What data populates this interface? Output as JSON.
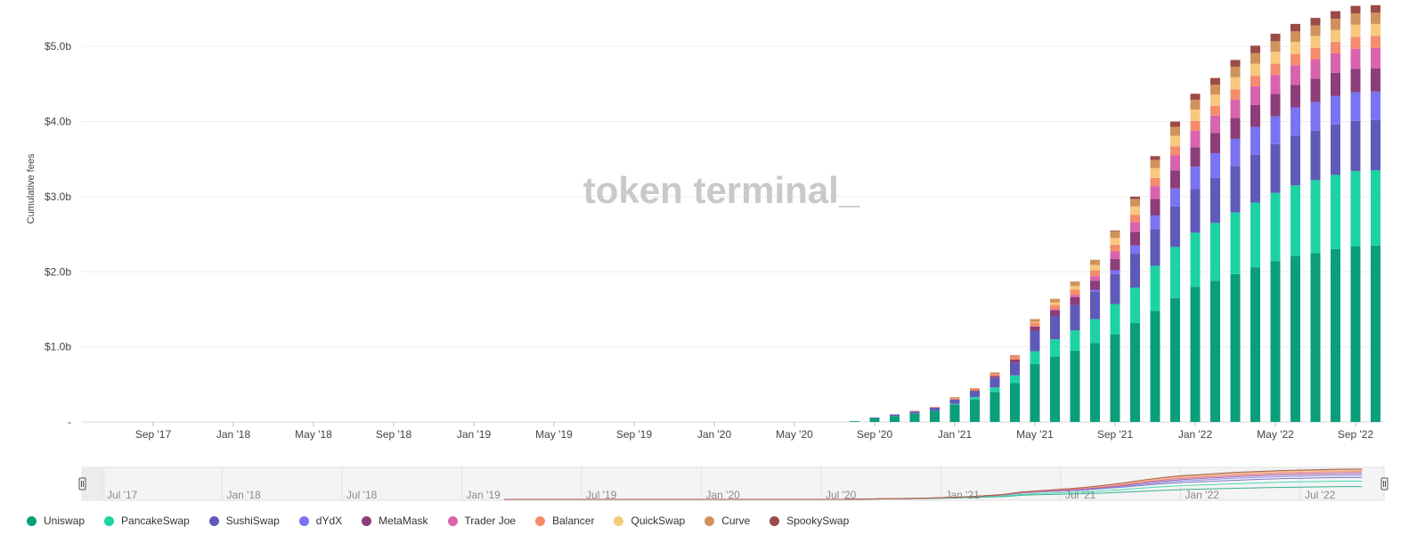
{
  "chart_data": {
    "type": "bar",
    "stacked": true,
    "ylabel": "Cumulative fees",
    "yticks": [
      "-",
      "$1.0b",
      "$2.0b",
      "$3.0b",
      "$4.0b",
      "$5.0b"
    ],
    "ylim": [
      0,
      5.5
    ],
    "xticks": [
      "Sep '17",
      "Jan '18",
      "May '18",
      "Sep '18",
      "Jan '19",
      "May '19",
      "Sep '19",
      "Jan '20",
      "May '20",
      "Sep '20",
      "Jan '21",
      "May '21",
      "Sep '21",
      "Jan '22",
      "May '22",
      "Sep '22"
    ],
    "categories": [
      "Aug '20",
      "Sep '20",
      "Oct '20",
      "Nov '20",
      "Dec '20",
      "Jan '21",
      "Feb '21",
      "Mar '21",
      "Apr '21",
      "May '21",
      "Jun '21",
      "Jul '21",
      "Aug '21",
      "Sep '21",
      "Oct '21",
      "Nov '21",
      "Dec '21",
      "Jan '22",
      "Feb '22",
      "Mar '22",
      "Apr '22",
      "May '22",
      "Jun '22",
      "Jul '22",
      "Aug '22",
      "Sep '22",
      "Oct '22"
    ],
    "grid": true,
    "legend_position": "bottom",
    "watermark": "token terminal_",
    "series": [
      {
        "name": "Uniswap",
        "color": "#0a9e7a",
        "values": [
          0.01,
          0.05,
          0.08,
          0.11,
          0.15,
          0.23,
          0.3,
          0.4,
          0.52,
          0.77,
          0.87,
          0.95,
          1.05,
          1.17,
          1.32,
          1.48,
          1.65,
          1.8,
          1.88,
          1.97,
          2.06,
          2.14,
          2.21,
          2.25,
          2.3,
          2.34,
          2.35
        ]
      },
      {
        "name": "PancakeSwap",
        "color": "#1dd3a4",
        "values": [
          0,
          0,
          0,
          0,
          0,
          0.01,
          0.03,
          0.06,
          0.1,
          0.17,
          0.23,
          0.27,
          0.32,
          0.4,
          0.47,
          0.6,
          0.68,
          0.72,
          0.77,
          0.82,
          0.86,
          0.91,
          0.94,
          0.97,
          0.99,
          1.0,
          1.0
        ]
      },
      {
        "name": "SushiSwap",
        "color": "#5e5bb8",
        "values": [
          0,
          0.01,
          0.02,
          0.03,
          0.04,
          0.06,
          0.08,
          0.13,
          0.17,
          0.27,
          0.31,
          0.34,
          0.37,
          0.4,
          0.45,
          0.49,
          0.54,
          0.58,
          0.6,
          0.62,
          0.64,
          0.65,
          0.66,
          0.66,
          0.67,
          0.67,
          0.67
        ]
      },
      {
        "name": "dYdX",
        "color": "#7a73f2",
        "values": [
          0,
          0,
          0,
          0,
          0,
          0,
          0,
          0,
          0,
          0,
          0,
          0,
          0.02,
          0.05,
          0.11,
          0.18,
          0.24,
          0.3,
          0.33,
          0.36,
          0.37,
          0.37,
          0.38,
          0.38,
          0.38,
          0.38,
          0.38
        ]
      },
      {
        "name": "MetaMask",
        "color": "#8c3e78",
        "values": [
          0,
          0,
          0,
          0,
          0,
          0,
          0.01,
          0.02,
          0.04,
          0.06,
          0.08,
          0.1,
          0.12,
          0.15,
          0.18,
          0.22,
          0.24,
          0.26,
          0.27,
          0.28,
          0.29,
          0.3,
          0.3,
          0.31,
          0.31,
          0.31,
          0.31
        ]
      },
      {
        "name": "Trader Joe",
        "color": "#d864ad",
        "values": [
          0,
          0,
          0,
          0,
          0,
          0,
          0,
          0,
          0,
          0,
          0.01,
          0.03,
          0.06,
          0.1,
          0.13,
          0.17,
          0.2,
          0.22,
          0.23,
          0.24,
          0.25,
          0.25,
          0.26,
          0.26,
          0.26,
          0.27,
          0.27
        ]
      },
      {
        "name": "Balancer",
        "color": "#f48c6d",
        "values": [
          0,
          0,
          0,
          0.01,
          0.01,
          0.02,
          0.02,
          0.03,
          0.04,
          0.05,
          0.06,
          0.07,
          0.08,
          0.09,
          0.1,
          0.11,
          0.12,
          0.13,
          0.13,
          0.14,
          0.14,
          0.15,
          0.15,
          0.15,
          0.15,
          0.16,
          0.16
        ]
      },
      {
        "name": "QuickSwap",
        "color": "#f7c97e",
        "values": [
          0,
          0,
          0,
          0,
          0,
          0,
          0,
          0,
          0,
          0.01,
          0.03,
          0.05,
          0.07,
          0.09,
          0.11,
          0.13,
          0.14,
          0.15,
          0.15,
          0.16,
          0.16,
          0.16,
          0.16,
          0.16,
          0.16,
          0.16,
          0.16
        ]
      },
      {
        "name": "Curve",
        "color": "#d0925d",
        "values": [
          0,
          0,
          0,
          0,
          0,
          0.01,
          0.01,
          0.02,
          0.02,
          0.04,
          0.05,
          0.06,
          0.07,
          0.09,
          0.1,
          0.11,
          0.12,
          0.13,
          0.13,
          0.14,
          0.14,
          0.14,
          0.14,
          0.14,
          0.15,
          0.15,
          0.15
        ]
      },
      {
        "name": "SpookySwap",
        "color": "#9b4a45",
        "values": [
          0,
          0,
          0,
          0,
          0,
          0,
          0,
          0,
          0,
          0,
          0,
          0,
          0,
          0.01,
          0.03,
          0.05,
          0.07,
          0.08,
          0.09,
          0.09,
          0.1,
          0.1,
          0.1,
          0.1,
          0.1,
          0.1,
          0.1
        ]
      }
    ]
  },
  "navigator": {
    "labels": [
      "Jul '17",
      "Jan '18",
      "Jul '18",
      "Jan '19",
      "Jul '19",
      "Jan '20",
      "Jul '20",
      "Jan '21",
      "Jul '21",
      "Jan '22",
      "Jul '22"
    ],
    "handle_left_icon": "range-handle-left-icon",
    "handle_right_icon": "range-handle-right-icon"
  }
}
